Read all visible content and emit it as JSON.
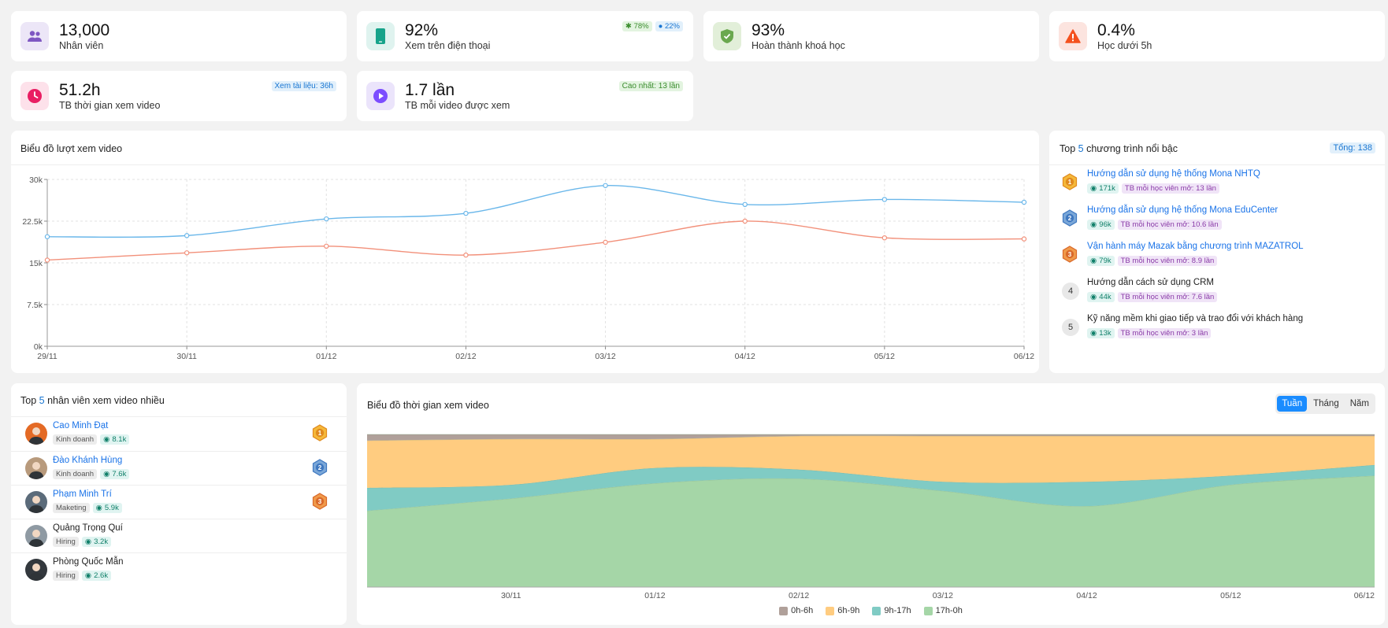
{
  "stats": [
    {
      "value": "13,000",
      "label": "Nhân viên",
      "icon": "users-icon",
      "bg": "#ece6f7",
      "fg": "#7e57c2"
    },
    {
      "value": "92%",
      "label": "Xem trên điện thoại",
      "icon": "phone-icon",
      "bg": "#dff3ef",
      "fg": "#16a38a",
      "badges": [
        "78%",
        "22%"
      ]
    },
    {
      "value": "93%",
      "label": "Hoàn thành khoá học",
      "icon": "shield-check-icon",
      "bg": "#e2efd9",
      "fg": "#6aa84f"
    },
    {
      "value": "0.4%",
      "label": "Học dưới 5h",
      "icon": "warning-icon",
      "bg": "#fce4df",
      "fg": "#f4511e"
    },
    {
      "value": "51.2h",
      "label": "TB thời gian xem video",
      "icon": "clock-icon",
      "bg": "#fde1ea",
      "fg": "#e91e63",
      "badge": "Xem tài liệu: 36h"
    },
    {
      "value": "1.7 lần",
      "label": "TB mỗi video được xem",
      "icon": "play-icon",
      "bg": "#ebe4fb",
      "fg": "#7c4dff",
      "badge": "Cao nhất: 13 lần"
    }
  ],
  "views_chart": {
    "title": "Biểu đồ lượt xem video"
  },
  "top_programs": {
    "title_prefix": "Top ",
    "title_count": "5",
    "title_suffix": " chương trình nổi bậc",
    "total": "Tổng: 138",
    "items": [
      {
        "rank": "1",
        "name": "Hướng dẫn sử dụng hệ thống Mona NHTQ",
        "views": "171k",
        "avg": "TB mỗi học viên mở: 13 lần",
        "medal": "gold"
      },
      {
        "rank": "2",
        "name": "Hướng dẫn sử dụng hệ thống Mona EduCenter",
        "views": "96k",
        "avg": "TB mỗi học viên mở: 10.6 lần",
        "medal": "silver"
      },
      {
        "rank": "3",
        "name": "Vận hành máy Mazak bằng chương trình MAZATROL",
        "views": "79k",
        "avg": "TB mỗi học viên mở: 8.9 lần",
        "medal": "bronze"
      },
      {
        "rank": "4",
        "name": "Hướng dẫn cách sử dụng CRM",
        "views": "44k",
        "avg": "TB mỗi học viên mở: 7.6 lần",
        "medal": ""
      },
      {
        "rank": "5",
        "name": "Kỹ năng mềm khi giao tiếp và trao đổi với khách hàng",
        "views": "13k",
        "avg": "TB mỗi học viên mở: 3 lần",
        "medal": ""
      }
    ]
  },
  "top_employees": {
    "title_prefix": "Top ",
    "title_count": "5",
    "title_suffix": " nhân viên xem video nhiều",
    "items": [
      {
        "name": "Cao Minh Đạt",
        "dept": "Kinh doanh",
        "views": "8.1k",
        "medal": "gold",
        "link": true,
        "avatar": "#e46a25"
      },
      {
        "name": "Đào Khánh Hùng",
        "dept": "Kinh doanh",
        "views": "7.6k",
        "medal": "silver",
        "link": true,
        "avatar": "#b89a7c"
      },
      {
        "name": "Phạm Minh Trí",
        "dept": "Maketing",
        "views": "5.9k",
        "medal": "bronze",
        "link": true,
        "avatar": "#5b6b7a"
      },
      {
        "name": "Quảng Trọng Quí",
        "dept": "Hiring",
        "views": "3.2k",
        "medal": "",
        "link": false,
        "avatar": "#8f9aa3"
      },
      {
        "name": "Phòng Quốc Mẫn",
        "dept": "Hiring",
        "views": "2.6k",
        "medal": "",
        "link": false,
        "avatar": "#33383d"
      }
    ]
  },
  "time_chart": {
    "title": "Biểu đồ thời gian xem video",
    "tabs": [
      "Tuần",
      "Tháng",
      "Năm"
    ],
    "active_tab": "Tuần"
  },
  "chart_data": [
    {
      "type": "line",
      "title": "Biểu đồ lượt xem video",
      "categories": [
        "29/11",
        "30/11",
        "01/12",
        "02/12",
        "03/12",
        "04/12",
        "05/12",
        "06/12"
      ],
      "ylim": [
        0,
        30000
      ],
      "yticks": [
        "0k",
        "7.5k",
        "15k",
        "22.5k",
        "30k"
      ],
      "grid": true,
      "series": [
        {
          "values": [
            19700,
            19900,
            22900,
            23900,
            28900,
            25500,
            26400,
            25900
          ],
          "color": "#6ab7ea"
        },
        {
          "values": [
            15500,
            16800,
            18000,
            16400,
            18700,
            22500,
            19500,
            19300
          ],
          "color": "#f2907a"
        }
      ]
    },
    {
      "type": "area",
      "title": "Biểu đồ thời gian xem video",
      "stacked": true,
      "normalized": true,
      "categories": [
        "29/11",
        "30/11",
        "01/12",
        "02/12",
        "03/12",
        "04/12",
        "05/12",
        "06/12"
      ],
      "xticks": [
        "30/11",
        "01/12",
        "02/12",
        "03/12",
        "04/12",
        "05/12",
        "06/12"
      ],
      "legend": "bottom",
      "series": [
        {
          "name": "17h-0h",
          "color": "#a5d6a7",
          "values": [
            0.5,
            0.58,
            0.68,
            0.71,
            0.63,
            0.53,
            0.67,
            0.73
          ]
        },
        {
          "name": "9h-17h",
          "color": "#80cbc4",
          "values": [
            0.15,
            0.09,
            0.1,
            0.06,
            0.06,
            0.16,
            0.06,
            0.07
          ]
        },
        {
          "name": "6h-9h",
          "color": "#ffcc80",
          "values": [
            0.31,
            0.3,
            0.19,
            0.22,
            0.3,
            0.3,
            0.26,
            0.19
          ]
        },
        {
          "name": "0h-6h",
          "color": "#b0a09a",
          "values": [
            0.04,
            0.03,
            0.03,
            0.01,
            0.01,
            0.01,
            0.01,
            0.01
          ]
        }
      ]
    }
  ]
}
